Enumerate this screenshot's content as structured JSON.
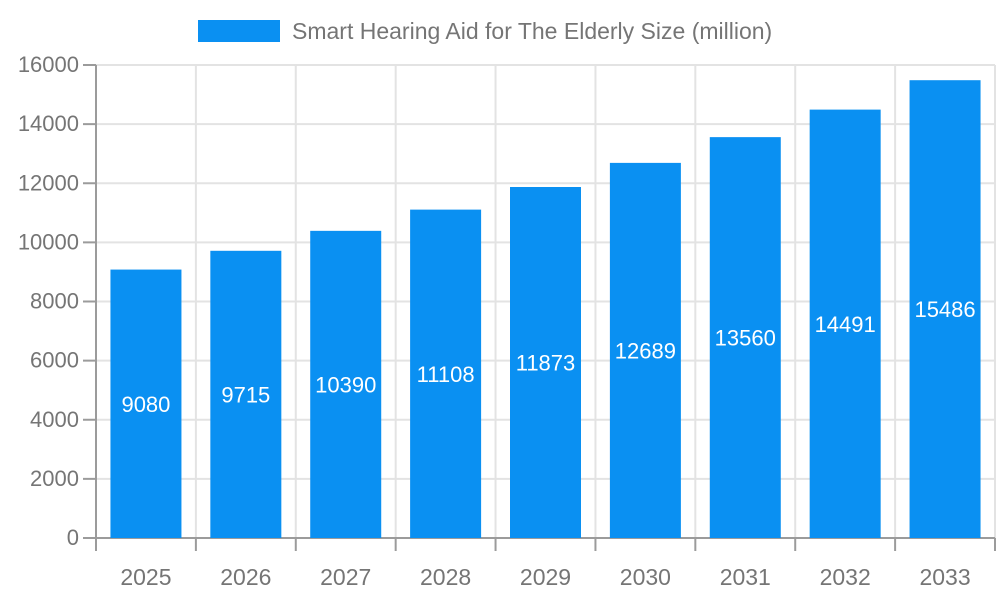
{
  "chart_data": {
    "type": "bar",
    "title": "Smart Hearing Aid for The Elderly Size (million)",
    "categories": [
      "2025",
      "2026",
      "2027",
      "2028",
      "2029",
      "2030",
      "2031",
      "2032",
      "2033"
    ],
    "series": [
      {
        "name": "Smart Hearing Aid for The Elderly Size (million)",
        "values": [
          9080,
          9715,
          10390,
          11108,
          11873,
          12689,
          13560,
          14491,
          15486
        ]
      }
    ],
    "xlabel": "",
    "ylabel": "",
    "ylim": [
      0,
      16000
    ],
    "ytick_step": 2000,
    "yticks": [
      0,
      2000,
      4000,
      6000,
      8000,
      10000,
      12000,
      14000,
      16000
    ],
    "grid": true,
    "legend_position": "top",
    "value_labels": "inside-center",
    "colors": {
      "bar": "#0a90f2",
      "bar_value_text": "#ffffff",
      "axis_text": "#757575",
      "legend_text": "#757575",
      "grid_line": "#e3e3e3",
      "axis_line": "#9b9b9b",
      "background": "#ffffff"
    }
  }
}
